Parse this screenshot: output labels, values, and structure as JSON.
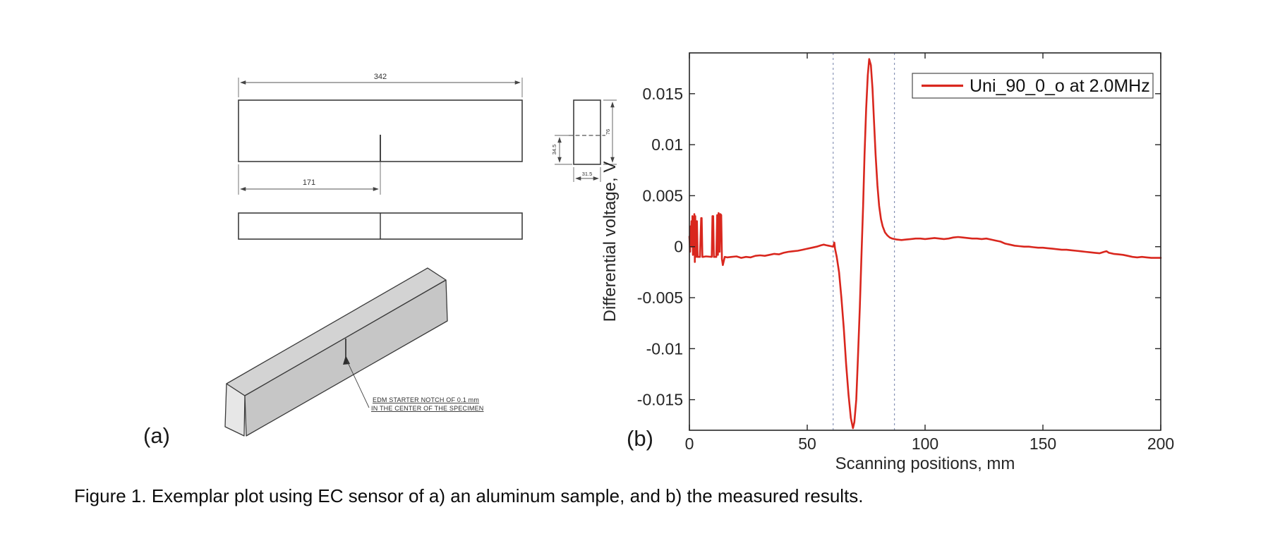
{
  "figure": {
    "caption": "Figure 1. Exemplar plot using EC sensor of a) an aluminum sample, and b) the measured results.",
    "panel_a_label": "(a)",
    "panel_b_label": "(b)"
  },
  "drawing": {
    "dim_length": "342",
    "dim_half_length": "171",
    "dim_section_notch_depth": "34.5",
    "dim_section_width": "31.5",
    "dim_section_height": "76",
    "notch_note_line1": "EDM STARTER NOTCH OF 0.1 mm",
    "notch_note_line2": "IN THE CENTER OF THE SPECIMEN"
  },
  "chart_data": {
    "type": "line",
    "title": "",
    "xlabel": "Scanning positions, mm",
    "ylabel": "Differential voltage, V",
    "xlim": [
      0,
      200
    ],
    "ylim": [
      -0.018,
      0.019
    ],
    "xticks": [
      0,
      50,
      100,
      150,
      200
    ],
    "xtick_labels": [
      "0",
      "50",
      "100",
      "150",
      "200"
    ],
    "yticks": [
      -0.015,
      -0.01,
      -0.005,
      0,
      0.005,
      0.01,
      0.015
    ],
    "ytick_labels": [
      "-0.015",
      "-0.01",
      "-0.005",
      "0",
      "0.005",
      "0.01",
      "0.015"
    ],
    "grid": false,
    "axis_color": "#262626",
    "legend": {
      "position": "top-right",
      "entries": [
        {
          "label": "Uni_90_0_o at 2.0MHz",
          "color": "#d9271e"
        }
      ]
    },
    "vlines": {
      "x": [
        61,
        87
      ],
      "style": "dashed",
      "color": "#8793b5"
    },
    "series": [
      {
        "name": "Uni_90_0_o at 2.0MHz",
        "color": "#d9271e",
        "x": [
          0,
          0.3,
          0.5,
          0.7,
          0.9,
          1.1,
          1.3,
          1.5,
          1.7,
          1.9,
          2.1,
          2.3,
          2.5,
          2.8,
          3.2,
          3.5,
          4.5,
          5.0,
          5.2,
          5.5,
          5.8,
          7,
          9.5,
          9.8,
          10.1,
          10.4,
          10.7,
          11.4,
          11.8,
          12.1,
          12.4,
          12.8,
          13.1,
          13.5,
          13.8,
          14.2,
          15,
          16,
          18,
          20,
          22,
          24,
          26,
          28,
          30,
          32,
          34,
          36,
          38,
          40,
          42,
          44,
          46,
          48,
          50,
          52,
          54,
          56,
          57,
          58,
          59,
          60,
          61,
          61.5,
          61.8,
          62.5,
          63.5,
          64.5,
          65.5,
          66.5,
          67.5,
          68.5,
          69.4,
          70,
          70.8,
          71.5,
          72.3,
          73,
          73.7,
          74.3,
          75,
          75.7,
          76.3,
          77,
          77.7,
          78.3,
          79,
          79.8,
          80.5,
          81.3,
          82,
          83,
          84,
          85,
          86,
          87,
          88,
          90,
          92,
          94,
          96,
          98,
          100,
          102,
          104,
          106,
          108,
          110,
          112,
          114,
          116,
          118,
          120,
          122,
          124,
          126,
          128,
          130,
          132,
          134,
          136,
          138,
          140,
          142,
          144,
          146,
          148,
          150,
          152,
          154,
          156,
          158,
          160,
          162,
          164,
          166,
          168,
          170,
          172,
          174,
          176,
          177,
          178,
          180,
          182,
          184,
          186,
          188,
          190,
          192,
          194,
          196,
          198,
          200
        ],
        "y": [
          0.001,
          -0.0005,
          0.002,
          0.0005,
          0.0025,
          0.0,
          0.003,
          -0.0008,
          0.0028,
          0.0003,
          0.0032,
          -0.0015,
          0.003,
          -0.001,
          0.0025,
          -0.001,
          -0.001,
          0.0028,
          0.0028,
          -0.001,
          -0.001,
          -0.00095,
          -0.001,
          0.003,
          0.003,
          -0.001,
          -0.001,
          -0.001,
          0.0031,
          -0.0008,
          0.0033,
          -0.0005,
          0.0032,
          0.0031,
          -0.0012,
          -0.0018,
          -0.001,
          -0.00105,
          -0.001,
          -0.00095,
          -0.0011,
          -0.001,
          -0.00105,
          -0.0009,
          -0.00085,
          -0.0009,
          -0.0008,
          -0.0007,
          -0.00075,
          -0.0006,
          -0.0005,
          -0.00045,
          -0.0004,
          -0.0003,
          -0.0002,
          -0.0001,
          0.0,
          0.00015,
          0.0002,
          0.00015,
          0.0001,
          5e-05,
          0.0,
          0.0004,
          -0.0002,
          -0.001,
          -0.0025,
          -0.005,
          -0.008,
          -0.0115,
          -0.0145,
          -0.0168,
          -0.0178,
          -0.0172,
          -0.015,
          -0.011,
          -0.006,
          -0.001,
          0.004,
          0.009,
          0.0135,
          0.0168,
          0.0184,
          0.0178,
          0.0155,
          0.0125,
          0.009,
          0.006,
          0.004,
          0.0027,
          0.002,
          0.0014,
          0.0011,
          0.0009,
          0.0008,
          0.00075,
          0.0007,
          0.00065,
          0.0007,
          0.00075,
          0.0008,
          0.0008,
          0.00075,
          0.0008,
          0.00085,
          0.0008,
          0.00075,
          0.0008,
          0.0009,
          0.00095,
          0.0009,
          0.00085,
          0.0008,
          0.0008,
          0.00075,
          0.0008,
          0.0007,
          0.0006,
          0.0005,
          0.0003,
          0.0002,
          0.0001,
          5e-05,
          0.0,
          0.0,
          -5e-05,
          -0.0001,
          -0.0001,
          -0.00015,
          -0.0002,
          -0.00025,
          -0.0003,
          -0.0003,
          -0.00035,
          -0.0004,
          -0.00045,
          -0.0005,
          -0.00055,
          -0.0006,
          -0.00065,
          -0.0005,
          -0.00045,
          -0.0006,
          -0.0007,
          -0.00075,
          -0.0008,
          -0.0009,
          -0.001,
          -0.00105,
          -0.001,
          -0.00105,
          -0.0011,
          -0.0011,
          -0.0011
        ]
      }
    ]
  }
}
